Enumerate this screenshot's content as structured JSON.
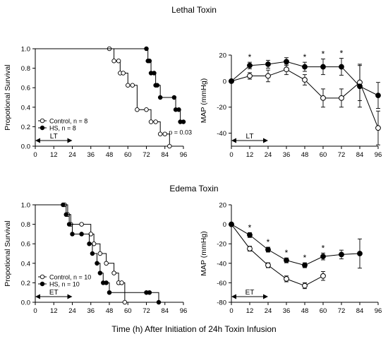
{
  "figure": {
    "xlabel": "Time (h) After Initiation of 24h Toxin Infusion"
  },
  "chart_data": [
    {
      "type": "line",
      "panel": "lethal-survival",
      "section_title": "Lethal Toxin",
      "ylabel": "Propotional Survival",
      "xlim": [
        0,
        96
      ],
      "ylim": [
        0,
        1
      ],
      "x_ticks": [
        0,
        12,
        24,
        36,
        48,
        60,
        72,
        84,
        96
      ],
      "y_ticks": [
        0,
        0.2,
        0.4,
        0.6,
        0.8,
        1.0
      ],
      "y_tick_labels": [
        "0.0",
        "0.2",
        "0.4",
        "0.6",
        "0.8",
        "1.0"
      ],
      "infusion_label": "LT",
      "infusion_range": [
        0,
        24
      ],
      "annotation": "p = 0.03",
      "legend_position": "bottom-left",
      "series": [
        {
          "name": "Control, n = 8",
          "marker": "open",
          "x": [
            0,
            48,
            51,
            54,
            55,
            57,
            60,
            63,
            66,
            72,
            75,
            78,
            81,
            84,
            87
          ],
          "y": [
            1.0,
            1.0,
            0.875,
            0.875,
            0.75,
            0.75,
            0.625,
            0.625,
            0.375,
            0.375,
            0.25,
            0.25,
            0.125,
            0.125,
            0.0
          ]
        },
        {
          "name": "HS, n = 8",
          "marker": "filled",
          "x": [
            0,
            72,
            73,
            74,
            75,
            77,
            78,
            79,
            81,
            90,
            91,
            93,
            94,
            96
          ],
          "y": [
            1.0,
            1.0,
            0.875,
            0.875,
            0.75,
            0.75,
            0.625,
            0.625,
            0.5,
            0.5,
            0.375,
            0.375,
            0.25,
            0.25
          ]
        }
      ]
    },
    {
      "type": "line",
      "panel": "lethal-map",
      "ylabel": "MAP (mmHg)",
      "xlim": [
        0,
        96
      ],
      "ylim": [
        -50,
        20
      ],
      "x_ticks": [
        0,
        12,
        24,
        36,
        48,
        60,
        72,
        84,
        96
      ],
      "y_ticks": [
        -40,
        -20,
        0,
        20
      ],
      "infusion_label": "LT",
      "infusion_range": [
        0,
        24
      ],
      "significant_x": [
        12,
        48,
        60,
        72
      ],
      "series": [
        {
          "name": "Control",
          "marker": "open",
          "x": [
            0,
            12,
            24,
            36,
            48,
            60,
            72,
            84,
            96
          ],
          "y": [
            0,
            4,
            4,
            9,
            1,
            -13,
            -13,
            -1,
            -36
          ],
          "err": [
            0,
            2.5,
            4.5,
            4,
            4,
            7,
            7,
            14,
            13
          ]
        },
        {
          "name": "HS",
          "marker": "filled",
          "x": [
            0,
            12,
            24,
            36,
            48,
            60,
            72,
            84,
            96
          ],
          "y": [
            0,
            12,
            13,
            15,
            11,
            11,
            11,
            -4,
            -11
          ],
          "err": [
            0,
            2.5,
            3,
            3,
            3.5,
            6,
            6.5,
            16,
            10
          ]
        }
      ]
    },
    {
      "type": "line",
      "panel": "edema-survival",
      "section_title": "Edema Toxin",
      "ylabel": "Propotional Survival",
      "xlim": [
        0,
        96
      ],
      "ylim": [
        0,
        1
      ],
      "x_ticks": [
        0,
        12,
        24,
        36,
        48,
        60,
        72,
        84,
        96
      ],
      "y_ticks": [
        0,
        0.2,
        0.4,
        0.6,
        0.8,
        1.0
      ],
      "y_tick_labels": [
        "0.0",
        "0.2",
        "0.4",
        "0.6",
        "0.8",
        "1.0"
      ],
      "infusion_label": "ET",
      "infusion_range": [
        0,
        24
      ],
      "legend_position": "bottom-left",
      "series": [
        {
          "name": "Control, n = 10",
          "marker": "open",
          "x": [
            0,
            19,
            21,
            23,
            30,
            36,
            38,
            42,
            46,
            51,
            54,
            56,
            58
          ],
          "y": [
            1.0,
            1.0,
            0.9,
            0.8,
            0.8,
            0.7,
            0.6,
            0.5,
            0.4,
            0.3,
            0.2,
            0.2,
            0.0
          ]
        },
        {
          "name": "HS, n = 10",
          "marker": "filled",
          "x": [
            0,
            18,
            20,
            22,
            24,
            30,
            35,
            37,
            40,
            42,
            44,
            46,
            48,
            72,
            74,
            80
          ],
          "y": [
            1.0,
            1.0,
            0.9,
            0.8,
            0.7,
            0.7,
            0.6,
            0.5,
            0.4,
            0.3,
            0.2,
            0.2,
            0.1,
            0.1,
            0.1,
            0.0
          ]
        }
      ]
    },
    {
      "type": "line",
      "panel": "edema-map",
      "ylabel": "MAP (mmHg)",
      "xlim": [
        0,
        96
      ],
      "ylim": [
        -80,
        20
      ],
      "x_ticks": [
        0,
        12,
        24,
        36,
        48,
        60,
        72,
        84,
        96
      ],
      "y_ticks": [
        -80,
        -60,
        -40,
        -20,
        0,
        20
      ],
      "infusion_label": "ET",
      "infusion_range": [
        0,
        24
      ],
      "significant_x": [
        12,
        24,
        36,
        48,
        60
      ],
      "series": [
        {
          "name": "Control",
          "marker": "open",
          "x": [
            0,
            12,
            24,
            36,
            48,
            60
          ],
          "y": [
            0,
            -25,
            -42,
            -56,
            -63,
            -53
          ],
          "err": [
            0,
            2.5,
            2.5,
            3,
            3,
            4.5
          ]
        },
        {
          "name": "HS",
          "marker": "filled",
          "x": [
            0,
            12,
            24,
            36,
            48,
            60,
            72,
            84
          ],
          "y": [
            0,
            -11,
            -26,
            -37,
            -42,
            -33,
            -31,
            -30
          ],
          "err": [
            0,
            2.5,
            2.5,
            2.5,
            2.5,
            3.5,
            4.5,
            15
          ]
        }
      ]
    }
  ]
}
